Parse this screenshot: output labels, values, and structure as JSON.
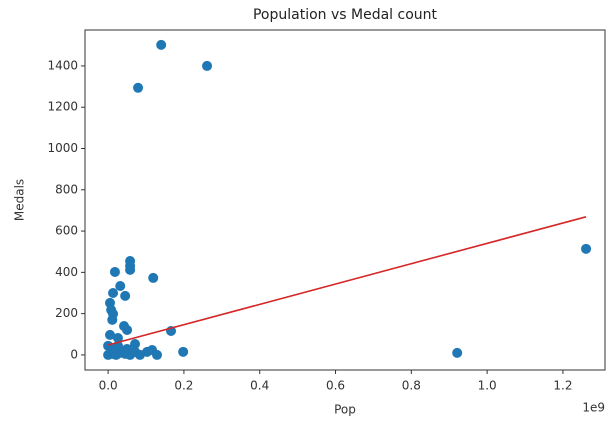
{
  "chart_data": {
    "type": "scatter",
    "title": "Population vs Medal count",
    "x_label": "Pop",
    "y_label": "Medals",
    "x_offset_label": "1e9",
    "color": "#1f77b4",
    "x": [
      0.14,
      0.261,
      0.079,
      1.261,
      0.921,
      0.198,
      0.166,
      0.119,
      0.058,
      0.058,
      0.058,
      0.018,
      0.032,
      0.045,
      0.013,
      0.005,
      0.008,
      0.013,
      0.011,
      0.005,
      0.042,
      0.05,
      0.026,
      0.071,
      0.103,
      0.129,
      0.116,
      0,
      0.011,
      0.021,
      0.032,
      0.045,
      0.058,
      0.071,
      0.084,
      0,
      0.016,
      0.05,
      0.026
    ],
    "values": [
      1502,
      1400,
      1294,
      514,
      10,
      15,
      116,
      373,
      455,
      431,
      412,
      402,
      334,
      286,
      300,
      252,
      218,
      199,
      170,
      97,
      140,
      121,
      82,
      53,
      15,
      0,
      24,
      0,
      5,
      0,
      10,
      5,
      0,
      15,
      0,
      44,
      34,
      29,
      44
    ],
    "trendline": {
      "x": [
        0,
        1.261
      ],
      "values": [
        48,
        669
      ],
      "color": "#d62728"
    },
    "xlim": [
      -0.061,
      1.311
    ],
    "ylim": [
      -73,
      1574
    ],
    "xticks": [
      {
        "value": 0,
        "label": "0.0"
      },
      0.2,
      0.4,
      0.6,
      0.8,
      {
        "value": 1,
        "label": "1.0"
      },
      1.2
    ],
    "yticks": [
      0,
      200,
      400,
      600,
      800,
      1000,
      1200,
      1400
    ]
  }
}
